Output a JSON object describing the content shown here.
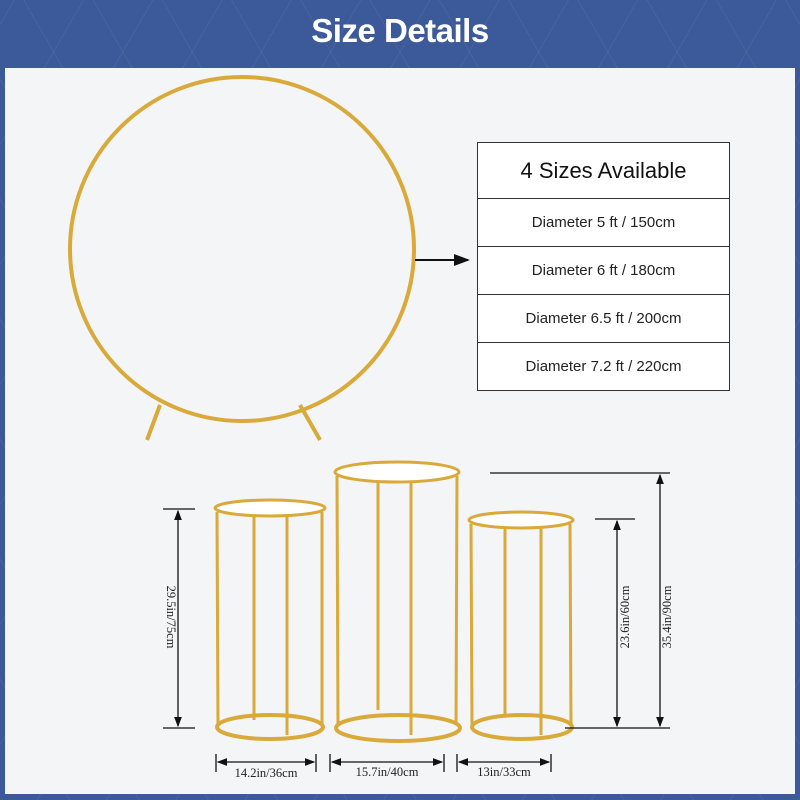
{
  "header": {
    "title": "Size Details"
  },
  "sizes_table": {
    "title": "4 Sizes Available",
    "rows": [
      "Diameter 5 ft / 150cm",
      "Diameter 6 ft / 180cm",
      "Diameter 6.5 ft / 200cm",
      "Diameter 7.2 ft / 220cm"
    ]
  },
  "dimensions": {
    "left_height": "29.5in/75cm",
    "right_height": "23.6in/60cm",
    "tall_height": "35.4in/90cm",
    "left_width": "14.2in/36cm",
    "middle_width": "15.7in/40cm",
    "right_width": "13in/33cm"
  },
  "colors": {
    "header_bg": "#3c5a99",
    "gold": "#d9a93a",
    "panel": "#f4f5f7"
  }
}
